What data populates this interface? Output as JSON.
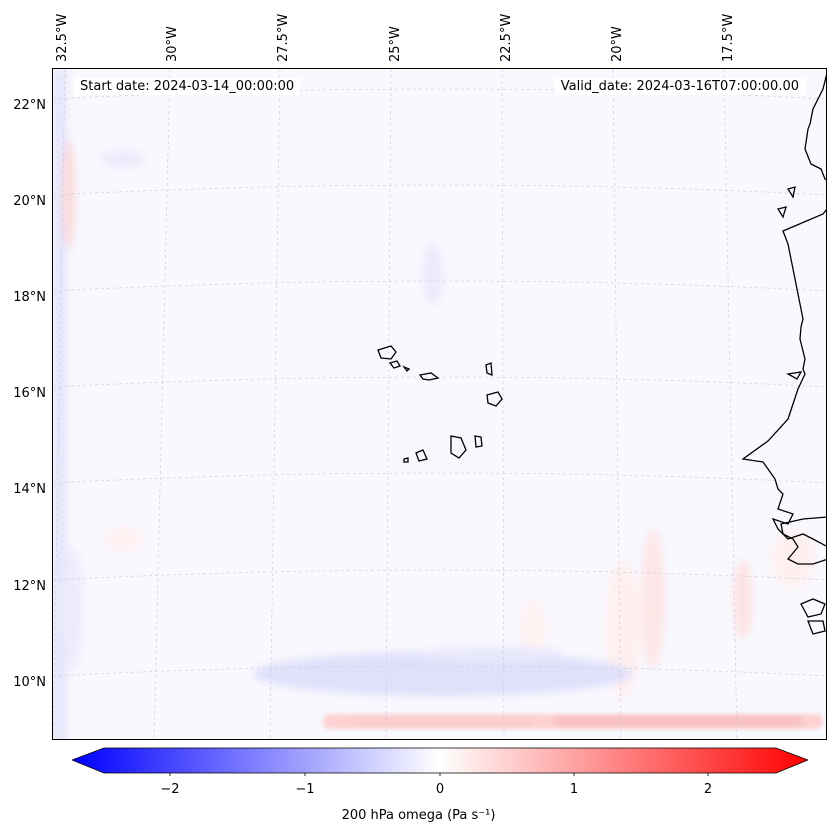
{
  "map": {
    "start_date": "Start date: 2024-03-14_00:00:00",
    "valid_date": "Valid_date: 2024-03-16T07:00:00.00",
    "lon_labels": [
      "32.5°W",
      "30°W",
      "27.5°W",
      "25°W",
      "22.5°W",
      "20°W",
      "17.5°W"
    ],
    "lat_labels": [
      "22°N",
      "20°N",
      "18°N",
      "16°N",
      "14°N",
      "12°N",
      "10°N"
    ],
    "variable": "200 hPa omega",
    "units": "Pa s⁻¹",
    "colorbar_label": "200 hPa omega (Pa s⁻¹)",
    "colorbar_ticks": [
      "−2",
      "−1",
      "0",
      "1",
      "2"
    ],
    "colorbar_range": [
      -2.6,
      2.6
    ],
    "colormap": "bwr",
    "colors": {
      "negative": "#0000ff",
      "zero": "#ffffff",
      "positive": "#ff0000",
      "coast": "#000000"
    },
    "gridlines": true
  }
}
